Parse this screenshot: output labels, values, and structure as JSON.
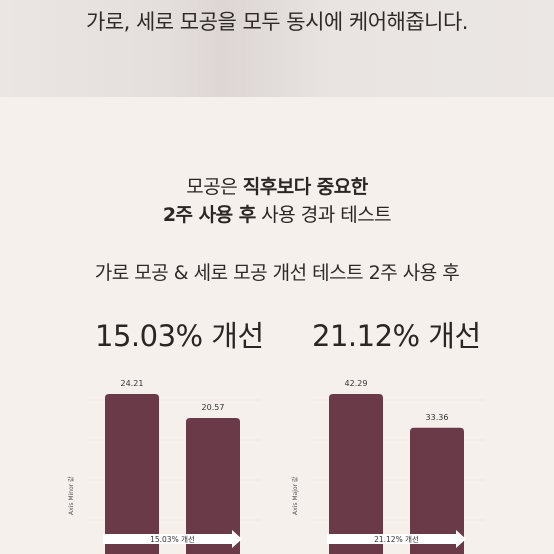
{
  "banner": {
    "text": "가로, 세로 모공을 모두 동시에 케어해줍니다."
  },
  "heading": {
    "line1_pre": "모공은 ",
    "line1_bold": "직후보다 중요한",
    "line2_bold": "2주 사용 후",
    "line2_post": " 사용 경과 테스트"
  },
  "subheading": "가로 모공 & 세로 모공 개선 테스트 2주 사용 후",
  "colors": {
    "bar": "#6b3a48",
    "background": "#f6f0ec",
    "grid": "#e3dbd8"
  },
  "left_result": {
    "value": "15.03% 개선"
  },
  "right_result": {
    "value": "21.12% 개선"
  },
  "chart_data": [
    {
      "type": "bar",
      "ylabel": "Axis Minor 값",
      "values": [
        24.21,
        20.57
      ],
      "value_labels": [
        "24.21",
        "20.57"
      ],
      "improvement_label": "15.03% 개선"
    },
    {
      "type": "bar",
      "ylabel": "Axis Major 값",
      "values": [
        42.29,
        33.36
      ],
      "value_labels": [
        "42.29",
        "33.36"
      ],
      "improvement_label": "21.12% 개선"
    }
  ]
}
